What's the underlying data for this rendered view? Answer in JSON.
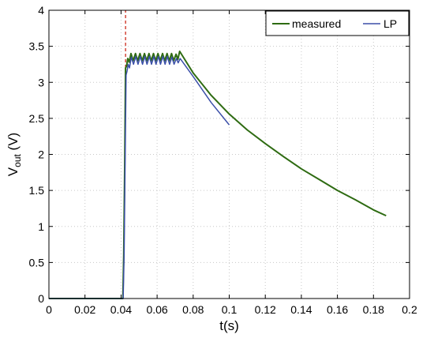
{
  "chart_data": {
    "type": "line",
    "xlabel": "t(s)",
    "ylabel": {
      "main": "V",
      "sub": "out",
      "unit": " (V)"
    },
    "xlim": [
      0,
      0.2
    ],
    "ylim": [
      0,
      4
    ],
    "x_ticks": [
      0,
      0.02,
      0.04,
      0.06,
      0.08,
      0.1,
      0.12,
      0.14,
      0.16,
      0.18,
      0.2
    ],
    "x_tick_labels": [
      "0",
      "0.02",
      "0.04",
      "0.06",
      "0.08",
      "0.1",
      "0.12",
      "0.14",
      "0.16",
      "0.18",
      "0.2"
    ],
    "y_ticks": [
      0,
      0.5,
      1,
      1.5,
      2,
      2.5,
      3,
      3.5,
      4
    ],
    "y_tick_labels": [
      "0",
      "0.5",
      "1",
      "1.5",
      "2",
      "2.5",
      "3",
      "3.5",
      "4"
    ],
    "grid": true,
    "legend_position": "top-right",
    "colors": {
      "measured": "#2e6b12",
      "LP": "#3b4fa8",
      "marker": "#cc2a1a",
      "grid": "#c8c8c8"
    },
    "series": [
      {
        "name": "measured",
        "points": [
          [
            0,
            0
          ],
          [
            0.041,
            0
          ],
          [
            0.0415,
            0.6
          ],
          [
            0.042,
            1.8
          ],
          [
            0.0425,
            3.2
          ],
          [
            0.043,
            3.22
          ],
          [
            0.0437,
            3.33
          ],
          [
            0.0445,
            3.28
          ],
          [
            0.0455,
            3.4
          ],
          [
            0.0467,
            3.3
          ],
          [
            0.048,
            3.4
          ],
          [
            0.0492,
            3.3
          ],
          [
            0.0505,
            3.4
          ],
          [
            0.0517,
            3.3
          ],
          [
            0.053,
            3.4
          ],
          [
            0.0542,
            3.3
          ],
          [
            0.0555,
            3.4
          ],
          [
            0.0567,
            3.3
          ],
          [
            0.058,
            3.4
          ],
          [
            0.0592,
            3.3
          ],
          [
            0.0605,
            3.4
          ],
          [
            0.0617,
            3.3
          ],
          [
            0.063,
            3.4
          ],
          [
            0.0642,
            3.3
          ],
          [
            0.0655,
            3.4
          ],
          [
            0.0667,
            3.3
          ],
          [
            0.068,
            3.4
          ],
          [
            0.0692,
            3.3
          ],
          [
            0.0705,
            3.39
          ],
          [
            0.0715,
            3.32
          ],
          [
            0.0725,
            3.43
          ],
          [
            0.08,
            3.13
          ],
          [
            0.09,
            2.82
          ],
          [
            0.1,
            2.56
          ],
          [
            0.11,
            2.34
          ],
          [
            0.12,
            2.15
          ],
          [
            0.13,
            1.97
          ],
          [
            0.14,
            1.8
          ],
          [
            0.15,
            1.65
          ],
          [
            0.16,
            1.5
          ],
          [
            0.17,
            1.37
          ],
          [
            0.18,
            1.23
          ],
          [
            0.187,
            1.15
          ]
        ]
      },
      {
        "name": "LP",
        "points": [
          [
            0,
            0
          ],
          [
            0.0412,
            0
          ],
          [
            0.0417,
            0.6
          ],
          [
            0.0422,
            1.7
          ],
          [
            0.0428,
            3.1
          ],
          [
            0.0433,
            3.15
          ],
          [
            0.044,
            3.25
          ],
          [
            0.0447,
            3.2
          ],
          [
            0.0457,
            3.35
          ],
          [
            0.0469,
            3.25
          ],
          [
            0.0482,
            3.36
          ],
          [
            0.0494,
            3.25
          ],
          [
            0.0507,
            3.36
          ],
          [
            0.0519,
            3.25
          ],
          [
            0.0532,
            3.36
          ],
          [
            0.0544,
            3.25
          ],
          [
            0.0557,
            3.36
          ],
          [
            0.0569,
            3.25
          ],
          [
            0.0582,
            3.36
          ],
          [
            0.0594,
            3.25
          ],
          [
            0.0607,
            3.36
          ],
          [
            0.0619,
            3.25
          ],
          [
            0.0632,
            3.36
          ],
          [
            0.0644,
            3.25
          ],
          [
            0.0657,
            3.36
          ],
          [
            0.0669,
            3.25
          ],
          [
            0.0682,
            3.35
          ],
          [
            0.0694,
            3.25
          ],
          [
            0.0707,
            3.33
          ],
          [
            0.0717,
            3.27
          ],
          [
            0.0728,
            3.33
          ],
          [
            0.08,
            3.08
          ],
          [
            0.09,
            2.72
          ],
          [
            0.1,
            2.41
          ]
        ]
      }
    ],
    "annotations": [
      {
        "type": "vline",
        "x": 0.0425,
        "y_from": 3.2,
        "y_to": 4,
        "style": "dashed"
      }
    ]
  }
}
